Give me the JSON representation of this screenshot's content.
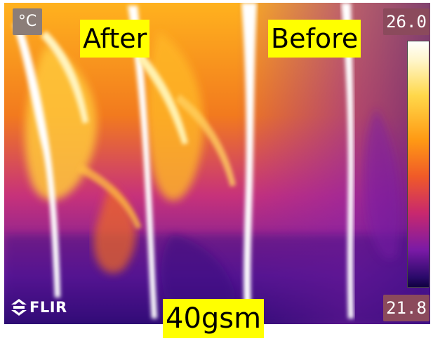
{
  "overlay": {
    "unit": "°C",
    "label_left": "After",
    "label_right": "Before",
    "label_bottom": "40gsm",
    "scale_max": "26.0",
    "scale_min": "21.8",
    "brand": "FLIR"
  },
  "palette": {
    "hot": "#ffffff",
    "warm": "#ffb020",
    "mid": "#e8462c",
    "cool": "#7a1aa6",
    "cold": "#1a0650",
    "label_bg": "#ffff00"
  }
}
